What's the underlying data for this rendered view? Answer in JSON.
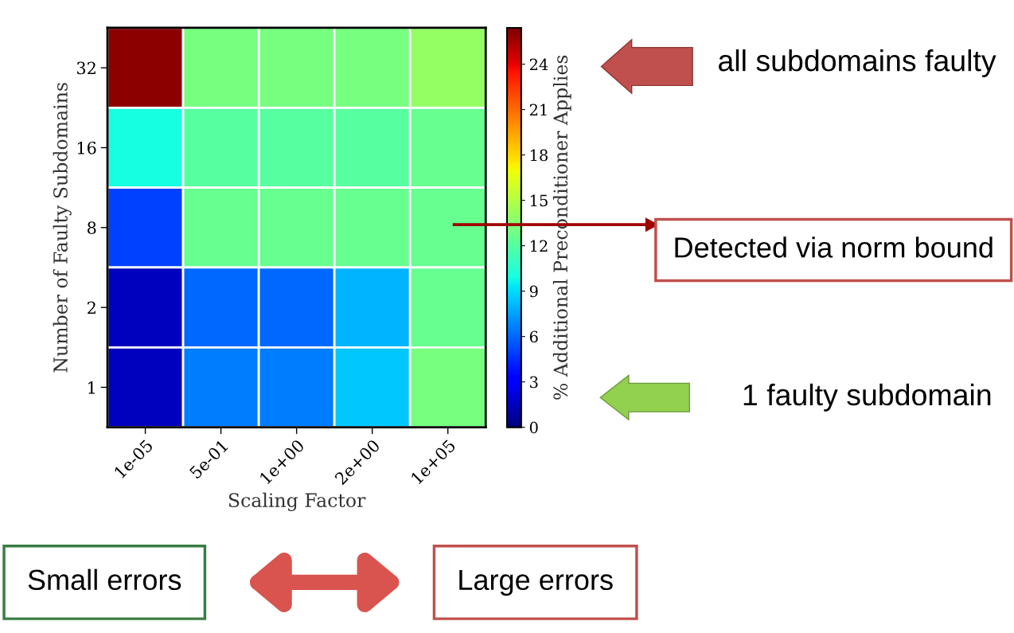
{
  "chart_data": {
    "type": "heatmap",
    "xlabel": "Scaling Factor",
    "ylabel": "Number of Faulty Subdomains",
    "clabel": "% Additional Preconditioner Applies",
    "categories": [
      "1e-05",
      "5e-01",
      "1e+00",
      "2e+00",
      "1e+05"
    ],
    "y_categories": [
      "32",
      "16",
      "8",
      "2",
      "1"
    ],
    "cells": [
      [
        26,
        13,
        13,
        13,
        14
      ],
      [
        10,
        12,
        12,
        12,
        12.5
      ],
      [
        5,
        12.5,
        12.5,
        12.5,
        12.5
      ],
      [
        1.5,
        6,
        6,
        8,
        12.5
      ],
      [
        1.5,
        6.5,
        6.5,
        8.5,
        13
      ]
    ],
    "clim": [
      0,
      26.4
    ],
    "cticks": [
      0,
      3,
      6,
      9,
      12,
      15,
      18,
      21,
      24
    ],
    "annotations": [
      "all subdomains faulty",
      "Detected via norm bound",
      "1 faulty subdomain",
      "Small errors",
      "Large errors"
    ]
  }
}
